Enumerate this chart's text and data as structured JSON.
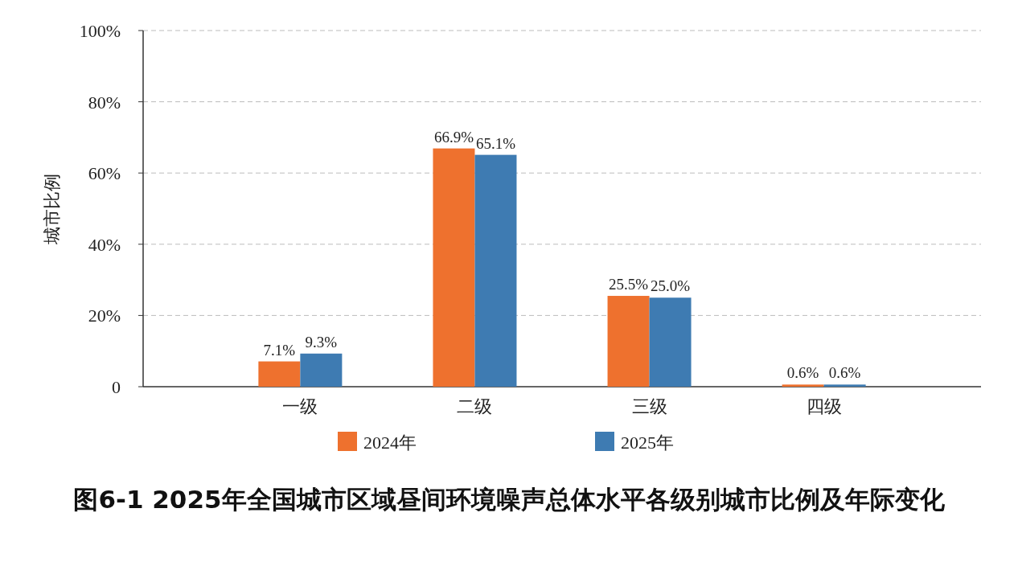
{
  "chart_data": {
    "type": "bar",
    "title": "图6-1  2025年全国城市区域昼间环境噪声总体水平各级别城市比例及年际变化",
    "ylabel": "城市比例",
    "categories": [
      "一级",
      "二级",
      "三级",
      "四级"
    ],
    "series": [
      {
        "name": "2024年",
        "color": "#ee712e",
        "values": [
          7.1,
          66.9,
          25.5,
          0.6
        ],
        "value_labels": [
          "7.1%",
          "66.9%",
          "25.5%",
          "0.6%"
        ]
      },
      {
        "name": "2025年",
        "color": "#3e7bb2",
        "values": [
          9.3,
          65.1,
          25.0,
          0.6
        ],
        "value_labels": [
          "9.3%",
          "65.1%",
          "25.0%",
          "0.6%"
        ]
      }
    ],
    "ylim": [
      0,
      100
    ],
    "yticks": [
      0,
      {
        "value": 20,
        "label": "20%"
      },
      {
        "value": 40,
        "label": "40%"
      },
      {
        "value": 60,
        "label": "60%"
      },
      {
        "value": 80,
        "label": "80%"
      },
      {
        "value": 100,
        "label": "100%"
      }
    ],
    "grid": "y",
    "legend": "bottom"
  }
}
